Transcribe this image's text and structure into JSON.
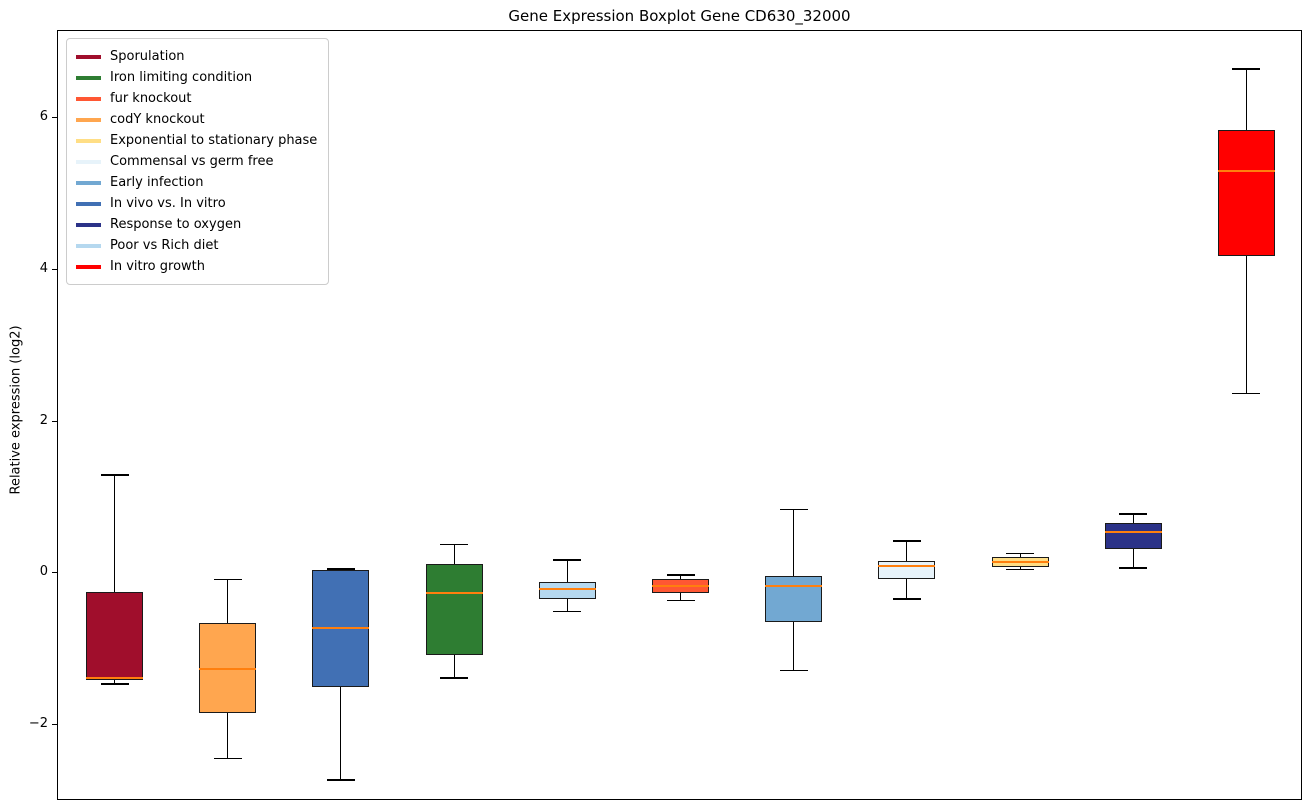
{
  "title": "Gene Expression Boxplot Gene CD630_32000",
  "ylabel": "Relative expression (log2)",
  "chart_data": {
    "type": "boxplot",
    "title": "Gene Expression Boxplot Gene CD630_32000",
    "xlabel": "",
    "ylabel": "Relative expression (log2)",
    "ylim": [
      -3.0,
      7.15
    ],
    "yticks": [
      -2,
      0,
      2,
      4,
      6
    ],
    "grid": false,
    "legend_position": "upper left",
    "median_color": "#ff7f0e",
    "box_edge_color": "#1a1a1a",
    "series": [
      {
        "name": "Sporulation",
        "color": "#A00E2C",
        "position": 0,
        "whisker_low": -1.46,
        "q1": -1.4,
        "median": -1.38,
        "q3": -0.25,
        "whisker_high": 1.3
      },
      {
        "name": "Iron limiting condition",
        "color": "#2E7D32",
        "position": 3,
        "whisker_low": -1.38,
        "q1": -1.08,
        "median": -0.26,
        "q3": 0.12,
        "whisker_high": 0.38
      },
      {
        "name": "fur knockout",
        "color": "#FF5733",
        "position": 5,
        "whisker_low": -0.36,
        "q1": -0.26,
        "median": -0.16,
        "q3": -0.08,
        "whisker_high": -0.02
      },
      {
        "name": "codY knockout",
        "color": "#FFA64F",
        "position": 1,
        "whisker_low": -2.44,
        "q1": -1.84,
        "median": -1.26,
        "q3": -0.66,
        "whisker_high": -0.08
      },
      {
        "name": "Exponential to stationary phase",
        "color": "#FFDE85",
        "position": 8,
        "whisker_low": 0.05,
        "q1": 0.09,
        "median": 0.15,
        "q3": 0.21,
        "whisker_high": 0.26
      },
      {
        "name": "Commensal vs germ free",
        "color": "#E7F3FA",
        "position": 7,
        "whisker_low": -0.34,
        "q1": -0.07,
        "median": 0.1,
        "q3": 0.16,
        "whisker_high": 0.43
      },
      {
        "name": "Early infection",
        "color": "#72A8D2",
        "position": 6,
        "whisker_low": -1.28,
        "q1": -0.64,
        "median": -0.16,
        "q3": -0.03,
        "whisker_high": 0.84
      },
      {
        "name": "In vivo vs. In vitro",
        "color": "#4170B4",
        "position": 2,
        "whisker_low": -2.72,
        "q1": -1.5,
        "median": -0.72,
        "q3": 0.05,
        "whisker_high": 0.06
      },
      {
        "name": "Response to oxygen",
        "color": "#2B3288",
        "position": 9,
        "whisker_low": 0.07,
        "q1": 0.32,
        "median": 0.55,
        "q3": 0.66,
        "whisker_high": 0.78
      },
      {
        "name": "Poor vs Rich diet",
        "color": "#B5D8EF",
        "position": 4,
        "whisker_low": -0.5,
        "q1": -0.34,
        "median": -0.2,
        "q3": -0.11,
        "whisker_high": 0.18
      },
      {
        "name": "In vitro growth",
        "color": "#FF0000",
        "position": 10,
        "whisker_low": 2.37,
        "q1": 4.18,
        "median": 5.3,
        "q3": 5.85,
        "whisker_high": 6.65
      }
    ]
  }
}
